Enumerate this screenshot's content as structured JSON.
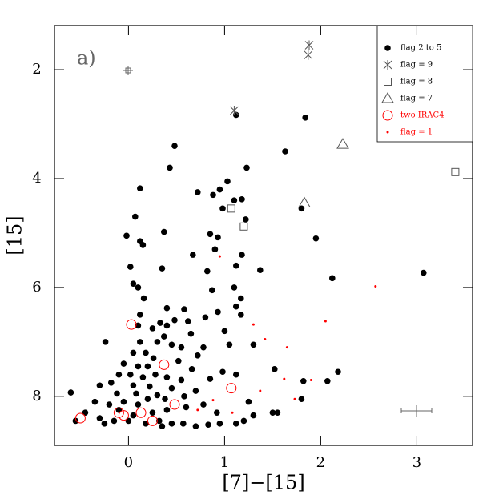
{
  "chart_data": {
    "type": "scatter",
    "annotation": "a)",
    "x_label": "[7]−[15]",
    "y_label": "[15]",
    "xlim": [
      -0.77,
      3.58
    ],
    "xticks": [
      0,
      1,
      2,
      3
    ],
    "ylim": [
      1.19,
      8.9
    ],
    "yticks": [
      2,
      4,
      6,
      8
    ],
    "y_inverted": true,
    "legend": "top-right",
    "series": [
      {
        "name": "flag 2 to 5",
        "color": "#000000",
        "marker": "dot",
        "x": [
          1.12,
          1.84,
          0.48,
          1.63,
          0.43,
          1.23,
          1.03,
          0.12,
          0.72,
          0.88,
          0.95,
          1.1,
          1.18,
          0.98,
          1.8,
          1.22,
          0.07,
          0.37,
          -0.02,
          0.12,
          0.15,
          0.85,
          0.93,
          1.95,
          0.9,
          0.67,
          1.18,
          0.02,
          0.35,
          1.12,
          1.37,
          0.82,
          3.07,
          2.12,
          0.05,
          0.1,
          1.1,
          0.87,
          0.16,
          1.17,
          1.12,
          0.4,
          0.58,
          0.93,
          1.17,
          0.12,
          0.8,
          0.48,
          0.62,
          0.33,
          0.4,
          0.1,
          0.25,
          1.0,
          0.65,
          0.37,
          -0.24,
          0.12,
          0.3,
          0.45,
          0.55,
          0.78,
          1.05,
          1.3,
          0.05,
          0.18,
          0.26,
          0.72,
          0.52,
          -0.05,
          0.1,
          0.2,
          0.66,
          1.52,
          0.98,
          1.12,
          -0.1,
          0.02,
          0.15,
          0.28,
          0.4,
          0.55,
          0.85,
          -0.18,
          -0.3,
          0.05,
          0.22,
          0.45,
          0.7,
          1.82,
          2.07,
          2.18,
          -0.6,
          -0.12,
          0.08,
          0.3,
          0.58,
          0.38,
          0.2,
          -0.05,
          -0.35,
          -0.2,
          0.1,
          0.6,
          0.78,
          1.25,
          1.55,
          1.5,
          1.3,
          -0.45,
          -0.3,
          -0.15,
          0.0,
          0.18,
          0.32,
          0.45,
          0.57,
          0.7,
          0.83,
          0.95,
          1.12,
          -0.25,
          -0.55,
          0.05,
          0.25,
          0.4,
          -0.1,
          1.2,
          1.8,
          0.92,
          0.35
        ],
        "values": [
          2.83,
          2.88,
          3.4,
          3.5,
          3.8,
          3.8,
          4.05,
          4.18,
          4.25,
          4.3,
          4.2,
          4.4,
          4.38,
          4.55,
          4.55,
          4.75,
          4.7,
          4.98,
          5.05,
          5.15,
          5.22,
          5.02,
          5.08,
          5.1,
          5.3,
          5.4,
          5.4,
          5.62,
          5.65,
          5.6,
          5.68,
          5.7,
          5.73,
          5.83,
          5.93,
          6.0,
          6.0,
          6.05,
          6.2,
          6.2,
          6.35,
          6.38,
          6.4,
          6.45,
          6.5,
          6.5,
          6.55,
          6.6,
          6.62,
          6.65,
          6.7,
          6.7,
          6.75,
          6.8,
          6.85,
          6.9,
          7.0,
          7.0,
          7.0,
          7.05,
          7.1,
          7.1,
          7.05,
          7.05,
          7.2,
          7.2,
          7.3,
          7.25,
          7.35,
          7.4,
          7.45,
          7.45,
          7.5,
          7.5,
          7.55,
          7.6,
          7.6,
          7.6,
          7.65,
          7.6,
          7.65,
          7.7,
          7.68,
          7.75,
          7.8,
          7.8,
          7.82,
          7.85,
          7.9,
          7.72,
          7.72,
          7.55,
          7.93,
          7.95,
          7.95,
          7.98,
          8.0,
          8.05,
          8.05,
          8.1,
          8.1,
          8.15,
          8.15,
          8.2,
          8.15,
          8.1,
          8.3,
          8.3,
          8.35,
          8.3,
          8.4,
          8.45,
          8.45,
          8.5,
          8.45,
          8.5,
          8.5,
          8.55,
          8.52,
          8.5,
          8.5,
          8.5,
          8.45,
          8.35,
          8.3,
          8.25,
          8.25,
          8.45,
          8.05,
          8.3,
          8.55
        ]
      },
      {
        "name": "flag = 9",
        "color": "#555555",
        "marker": "star",
        "x": [
          1.1,
          1.88,
          1.87
        ],
        "values": [
          2.75,
          1.55,
          1.73
        ]
      },
      {
        "name": "flag = 8",
        "color": "#555555",
        "marker": "square",
        "x": [
          1.07,
          1.2,
          3.4
        ],
        "values": [
          4.55,
          4.88,
          3.88
        ]
      },
      {
        "name": "flag = 7",
        "color": "#555555",
        "marker": "triangle",
        "x": [
          2.23,
          1.83
        ],
        "values": [
          3.37,
          4.45
        ]
      },
      {
        "name": "two IRAC4",
        "color": "#ff0000",
        "marker": "ring",
        "x": [
          -0.5,
          0.03,
          0.37,
          1.07,
          0.48,
          0.13,
          -0.1,
          -0.05,
          0.25
        ],
        "values": [
          8.4,
          6.68,
          7.42,
          7.85,
          8.15,
          8.3,
          8.3,
          8.35,
          8.45
        ]
      },
      {
        "name": "flag = 1",
        "color": "#ff0000",
        "marker": "tiny",
        "x": [
          0.95,
          1.3,
          1.42,
          1.65,
          2.05,
          2.57,
          1.62,
          1.9,
          1.37,
          1.73,
          1.08,
          0.72,
          0.88
        ],
        "values": [
          5.43,
          6.68,
          6.95,
          7.1,
          6.62,
          5.98,
          7.68,
          7.7,
          7.9,
          8.05,
          8.3,
          8.25,
          8.07
        ]
      }
    ]
  }
}
